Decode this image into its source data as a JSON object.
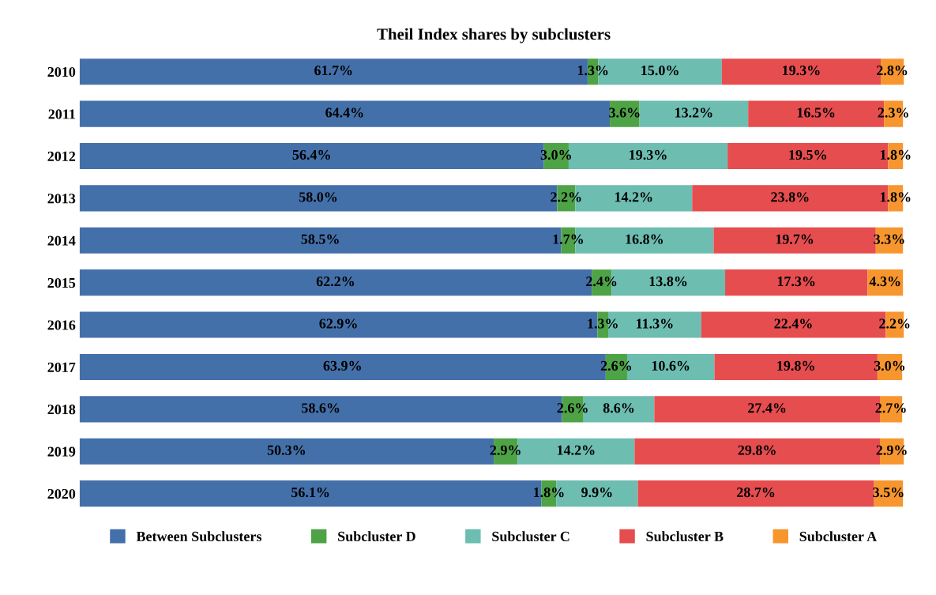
{
  "chart_data": {
    "type": "bar",
    "title": "Theil Index shares by subclusters",
    "orientation": "horizontal",
    "stacked": true,
    "legend": "bottom",
    "grid": false,
    "categories": [
      "2010",
      "2011",
      "2012",
      "2013",
      "2014",
      "2015",
      "2016",
      "2017",
      "2018",
      "2019",
      "2020"
    ],
    "series": [
      {
        "name": "Between Subclusters",
        "color": "#4470aa",
        "values": [
          61.7,
          64.4,
          56.4,
          58.0,
          58.5,
          62.2,
          62.9,
          63.9,
          58.6,
          50.3,
          56.1
        ],
        "value_labels": [
          "61.7%",
          "64.4%",
          "56.4%",
          "58.0%",
          "58.5%",
          "62.2%",
          "62.9%",
          "63.9%",
          "58.6%",
          "50.3%",
          "56.1%"
        ]
      },
      {
        "name": "Subcluster D",
        "color": "#4ea346",
        "values": [
          1.3,
          3.6,
          3.0,
          2.2,
          1.7,
          2.4,
          1.3,
          2.6,
          2.6,
          2.9,
          1.8
        ],
        "value_labels": [
          "1.3%",
          "3.6%",
          "3.0%",
          "2.2%",
          "1.7%",
          "2.4%",
          "1.3%",
          "2.6%",
          "2.6%",
          "2.9%",
          "1.8%"
        ]
      },
      {
        "name": "Subcluster C",
        "color": "#6dbdb1",
        "values": [
          15.0,
          13.2,
          19.3,
          14.2,
          16.8,
          13.8,
          11.3,
          10.6,
          8.6,
          14.2,
          9.9
        ],
        "value_labels": [
          "15.0%",
          "13.2%",
          "19.3%",
          "14.2%",
          "16.8%",
          "13.8%",
          "11.3%",
          "10.6%",
          "8.6%",
          "14.2%",
          "9.9%"
        ]
      },
      {
        "name": "Subcluster B",
        "color": "#e64d4f",
        "values": [
          19.3,
          16.5,
          19.5,
          23.8,
          19.7,
          17.3,
          22.4,
          19.8,
          27.4,
          29.8,
          28.7
        ],
        "value_labels": [
          "19.3%",
          "16.5%",
          "19.5%",
          "23.8%",
          "19.7%",
          "17.3%",
          "22.4%",
          "19.8%",
          "27.4%",
          "29.8%",
          "28.7%"
        ]
      },
      {
        "name": "Subcluster A",
        "color": "#f7962f",
        "values": [
          2.8,
          2.3,
          1.8,
          1.8,
          3.3,
          4.3,
          2.2,
          3.0,
          2.7,
          2.9,
          3.5
        ],
        "value_labels": [
          "2.8%",
          "2.3%",
          "1.8%",
          "1.8%",
          "3.3%",
          "4.3%",
          "2.2%",
          "3.0%",
          "2.7%",
          "2.9%",
          "3.5%"
        ]
      }
    ]
  }
}
